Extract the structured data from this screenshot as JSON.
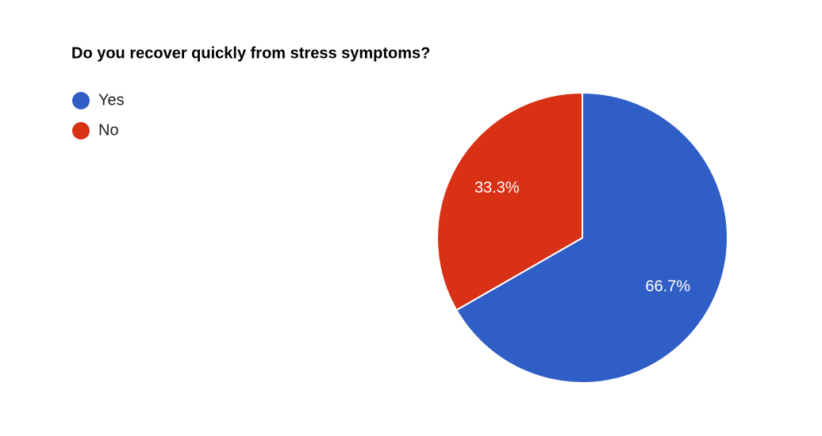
{
  "chart_data": {
    "type": "pie",
    "title": "Do you recover quickly from stress symptoms?",
    "categories": [
      "Yes",
      "No"
    ],
    "values": [
      66.7,
      33.3
    ],
    "value_labels": [
      "66.7%",
      "33.3%"
    ],
    "colors": [
      "#2f5ec6",
      "#d83115"
    ],
    "legend": "left"
  }
}
